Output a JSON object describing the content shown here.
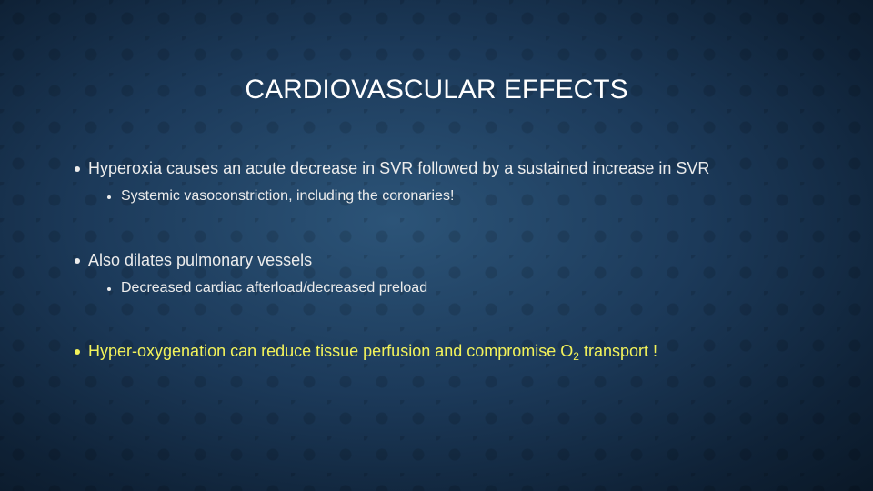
{
  "title": "CARDIOVASCULAR EFFECTS",
  "bullets": [
    {
      "text": "Hyperoxia causes an acute decrease in SVR followed by a sustained increase in SVR",
      "sub": [
        "Systemic vasoconstriction, including the coronaries!"
      ]
    },
    {
      "text": "Also dilates pulmonary vessels",
      "sub": [
        "Decreased cardiac afterload/decreased preload"
      ]
    },
    {
      "text": "Hyper-oxygenation can reduce tissue perfusion and compromise O",
      "subscript": "2",
      "text_after": " transport !"
    }
  ]
}
